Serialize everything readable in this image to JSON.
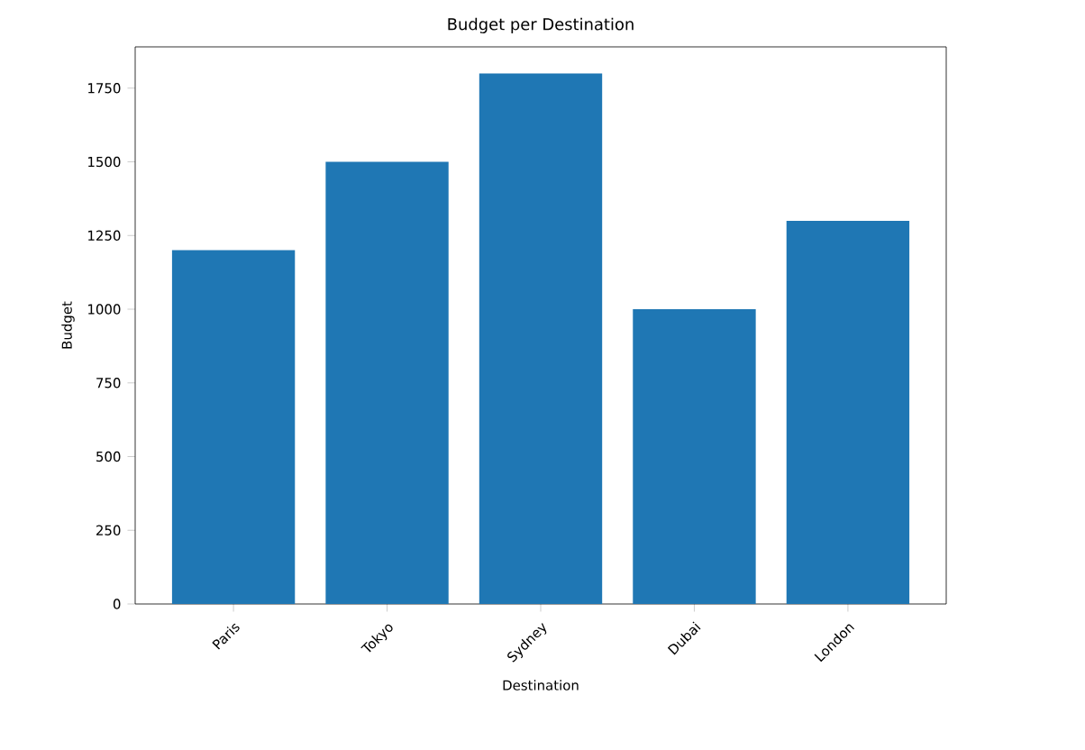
{
  "chart_data": {
    "type": "bar",
    "title": "Budget per Destination",
    "xlabel": "Destination",
    "ylabel": "Budget",
    "categories": [
      "Paris",
      "Tokyo",
      "Sydney",
      "Dubai",
      "London"
    ],
    "values": [
      1200,
      1500,
      1800,
      1000,
      1300
    ],
    "color": "#1f77b4",
    "ylim": [
      0,
      1890
    ],
    "yticks": [
      0,
      250,
      500,
      750,
      1000,
      1250,
      1500,
      1750
    ]
  }
}
